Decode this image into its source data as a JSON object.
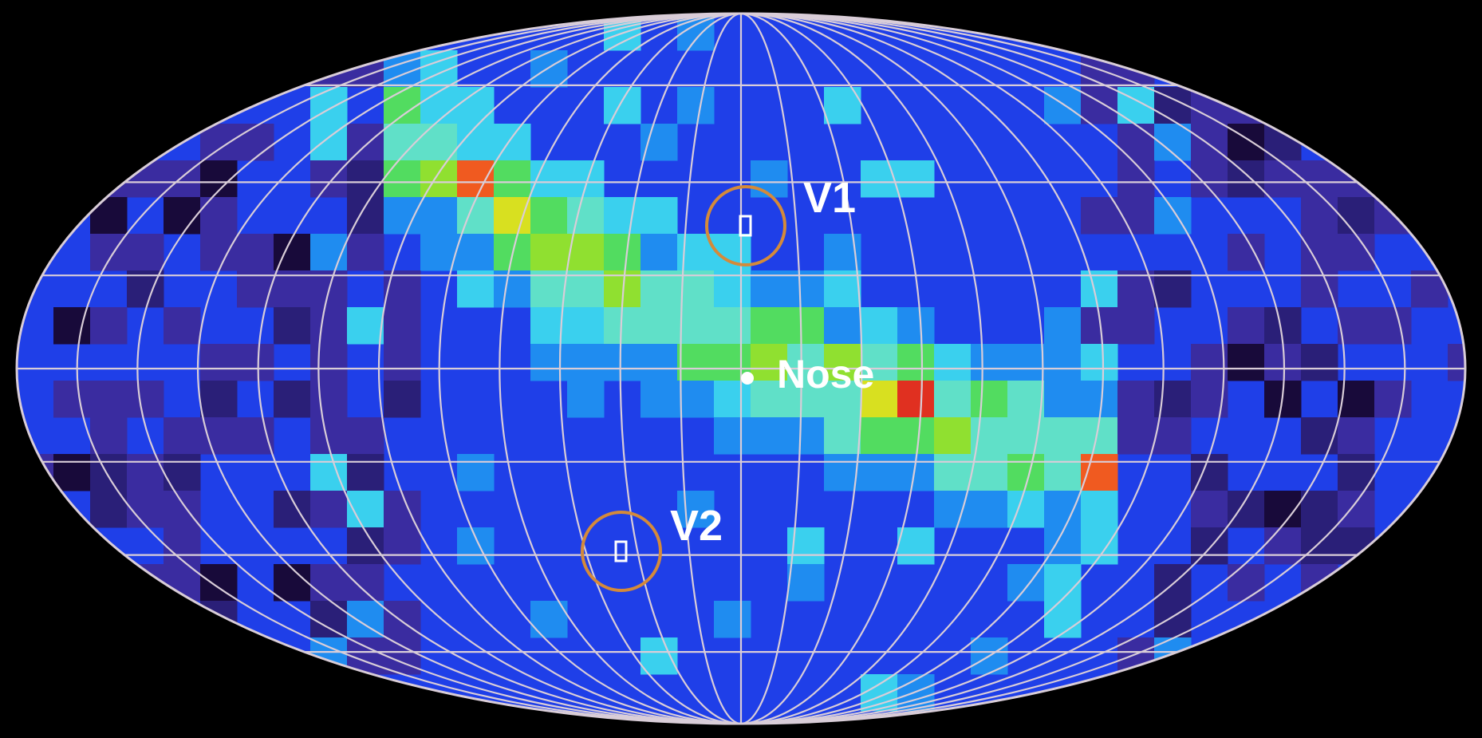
{
  "colors": {
    "background": "#000000",
    "base_blue": "#1f3fe8",
    "graticule": "#d9cdd8",
    "marker_ring": "#d48a3a",
    "palette": [
      "#180a3a",
      "#2a1f78",
      "#3a2ca0",
      "#1f3fe8",
      "#1f8cf0",
      "#3ad0ee",
      "#60e0c8",
      "#52dc60",
      "#90e030",
      "#d8e020",
      "#f0a020",
      "#f05a20",
      "#e03020",
      "#d8d8d8"
    ]
  },
  "markers": [
    {
      "id": "v1",
      "label": "V1"
    },
    {
      "id": "v2",
      "label": "V2"
    }
  ],
  "nose": {
    "label": "Nose"
  },
  "icons": {
    "spacecraft": "spacecraft-marker-icon",
    "nose": "nose-point-icon"
  }
}
